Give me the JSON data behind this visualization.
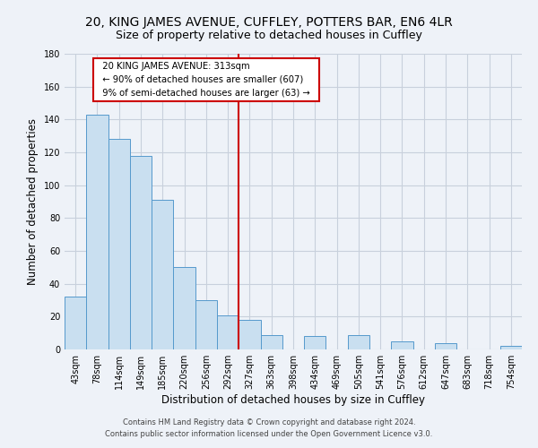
{
  "title": "20, KING JAMES AVENUE, CUFFLEY, POTTERS BAR, EN6 4LR",
  "subtitle": "Size of property relative to detached houses in Cuffley",
  "xlabel": "Distribution of detached houses by size in Cuffley",
  "ylabel": "Number of detached properties",
  "bar_labels": [
    "43sqm",
    "78sqm",
    "114sqm",
    "149sqm",
    "185sqm",
    "220sqm",
    "256sqm",
    "292sqm",
    "327sqm",
    "363sqm",
    "398sqm",
    "434sqm",
    "469sqm",
    "505sqm",
    "541sqm",
    "576sqm",
    "612sqm",
    "647sqm",
    "683sqm",
    "718sqm",
    "754sqm"
  ],
  "bar_values": [
    32,
    143,
    128,
    118,
    91,
    50,
    30,
    21,
    18,
    9,
    0,
    8,
    0,
    9,
    0,
    5,
    0,
    4,
    0,
    0,
    2
  ],
  "bar_color": "#c9dff0",
  "bar_edge_color": "#5599cc",
  "vline_color": "#cc0000",
  "annotation_title": "20 KING JAMES AVENUE: 313sqm",
  "annotation_line1": "← 90% of detached houses are smaller (607)",
  "annotation_line2": "9% of semi-detached houses are larger (63) →",
  "annotation_box_color": "#ffffff",
  "annotation_box_edge": "#cc0000",
  "ylim": [
    0,
    180
  ],
  "yticks": [
    0,
    20,
    40,
    60,
    80,
    100,
    120,
    140,
    160,
    180
  ],
  "footer1": "Contains HM Land Registry data © Crown copyright and database right 2024.",
  "footer2": "Contains public sector information licensed under the Open Government Licence v3.0.",
  "background_color": "#eef2f8",
  "grid_color": "#c8d0dc",
  "title_fontsize": 10,
  "subtitle_fontsize": 9,
  "axis_label_fontsize": 8.5,
  "tick_fontsize": 7,
  "footer_fontsize": 6,
  "vline_index": 8
}
